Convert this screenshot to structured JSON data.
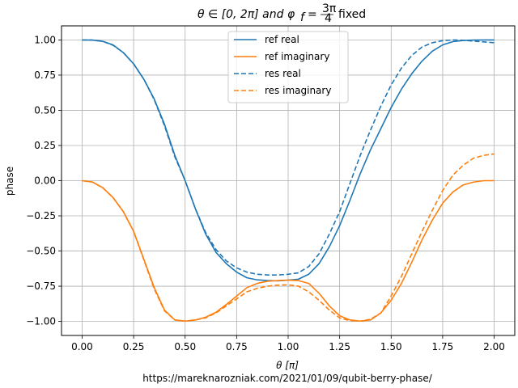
{
  "figure": {
    "title_plain": "θ ∈ [0, 2π] and φ",
    "title_subscript": "f",
    "title_eq": "=",
    "title_frac_num": "3π",
    "title_frac_den": "4",
    "title_suffix": "fixed",
    "footer": "https://mareknarozniak.com/2021/01/09/qubit-berry-phase/"
  },
  "chart_data": {
    "type": "line",
    "xlabel": "θ [π]",
    "ylabel": "phase",
    "xlim": [
      -0.1,
      2.1
    ],
    "ylim": [
      -1.1,
      1.1
    ],
    "grid": true,
    "legend_position": "top-center",
    "x_ticks": [
      "0.00",
      "0.25",
      "0.50",
      "0.75",
      "1.00",
      "1.25",
      "1.50",
      "1.75",
      "2.00"
    ],
    "x_tick_values": [
      0,
      0.25,
      0.5,
      0.75,
      1.0,
      1.25,
      1.5,
      1.75,
      2.0
    ],
    "y_ticks": [
      "1.00",
      "0.75",
      "0.50",
      "0.25",
      "0.00",
      "−0.25",
      "−0.50",
      "−0.75",
      "−1.00"
    ],
    "y_tick_values": [
      1.0,
      0.75,
      0.5,
      0.25,
      0.0,
      -0.25,
      -0.5,
      -0.75,
      -1.0
    ],
    "x": [
      0,
      0.05,
      0.1,
      0.15,
      0.2,
      0.25,
      0.3,
      0.35,
      0.4,
      0.45,
      0.5,
      0.55,
      0.6,
      0.65,
      0.7,
      0.75,
      0.8,
      0.85,
      0.9,
      0.95,
      1.0,
      1.05,
      1.1,
      1.15,
      1.2,
      1.25,
      1.3,
      1.35,
      1.4,
      1.45,
      1.5,
      1.55,
      1.6,
      1.65,
      1.7,
      1.75,
      1.8,
      1.85,
      1.9,
      1.95,
      2.0
    ],
    "series": [
      {
        "name": "ref real",
        "color": "#1f77b4",
        "dash": "solid",
        "values": [
          1.0,
          0.999,
          0.99,
          0.965,
          0.91,
          0.83,
          0.72,
          0.58,
          0.4,
          0.18,
          0.0,
          -0.2,
          -0.38,
          -0.51,
          -0.59,
          -0.65,
          -0.69,
          -0.705,
          -0.71,
          -0.712,
          -0.707,
          -0.7,
          -0.665,
          -0.59,
          -0.47,
          -0.32,
          -0.14,
          0.05,
          0.22,
          0.37,
          0.52,
          0.65,
          0.76,
          0.85,
          0.92,
          0.965,
          0.988,
          0.996,
          0.999,
          1.0,
          1.0
        ]
      },
      {
        "name": "ref imaginary",
        "color": "#ff7f0e",
        "dash": "solid",
        "values": [
          0.0,
          -0.01,
          -0.05,
          -0.12,
          -0.22,
          -0.36,
          -0.56,
          -0.76,
          -0.92,
          -0.99,
          -0.998,
          -0.99,
          -0.97,
          -0.935,
          -0.88,
          -0.82,
          -0.76,
          -0.73,
          -0.715,
          -0.71,
          -0.707,
          -0.71,
          -0.73,
          -0.8,
          -0.89,
          -0.96,
          -0.99,
          -0.998,
          -0.99,
          -0.94,
          -0.85,
          -0.73,
          -0.58,
          -0.42,
          -0.28,
          -0.16,
          -0.08,
          -0.03,
          -0.01,
          0.0,
          0.0
        ]
      },
      {
        "name": "res real",
        "color": "#1f77b4",
        "dash": "dashed",
        "values": [
          1.0,
          0.999,
          0.99,
          0.962,
          0.91,
          0.83,
          0.72,
          0.575,
          0.39,
          0.17,
          0.0,
          -0.2,
          -0.37,
          -0.49,
          -0.57,
          -0.62,
          -0.65,
          -0.665,
          -0.67,
          -0.67,
          -0.665,
          -0.655,
          -0.61,
          -0.52,
          -0.38,
          -0.22,
          -0.02,
          0.18,
          0.36,
          0.53,
          0.68,
          0.8,
          0.89,
          0.95,
          0.98,
          0.995,
          1.0,
          0.998,
          0.992,
          0.986,
          0.98
        ]
      },
      {
        "name": "res imaginary",
        "color": "#ff7f0e",
        "dash": "dashed",
        "values": [
          0.0,
          -0.01,
          -0.05,
          -0.12,
          -0.22,
          -0.36,
          -0.565,
          -0.77,
          -0.925,
          -0.99,
          -0.998,
          -0.99,
          -0.975,
          -0.94,
          -0.89,
          -0.84,
          -0.79,
          -0.765,
          -0.75,
          -0.742,
          -0.74,
          -0.75,
          -0.79,
          -0.85,
          -0.92,
          -0.975,
          -0.995,
          -0.998,
          -0.985,
          -0.94,
          -0.82,
          -0.68,
          -0.52,
          -0.36,
          -0.21,
          -0.07,
          0.04,
          0.11,
          0.16,
          0.18,
          0.19
        ]
      }
    ]
  }
}
